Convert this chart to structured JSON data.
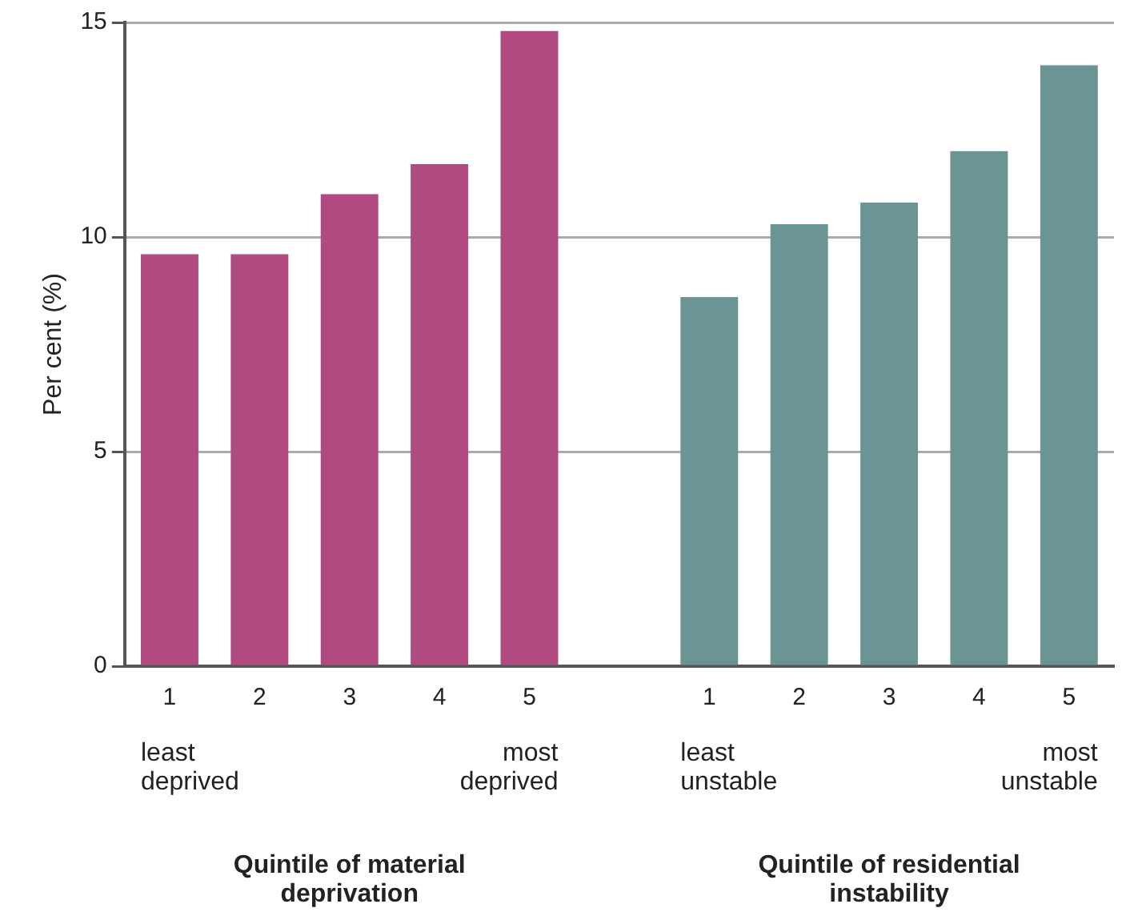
{
  "chart_data": {
    "type": "bar",
    "ylabel": "Per cent (%)",
    "categories": [
      "1",
      "2",
      "3",
      "4",
      "5",
      null,
      "1",
      "2",
      "3",
      "4",
      "5"
    ],
    "series": [
      {
        "color": "#b14a80",
        "values": [
          9.6,
          9.6,
          11.0,
          11.7,
          14.8,
          null,
          null,
          null,
          null,
          null,
          null
        ]
      },
      {
        "color": "#6b9495",
        "values": [
          null,
          null,
          null,
          null,
          null,
          null,
          8.6,
          10.3,
          10.8,
          12.0,
          14.0
        ]
      }
    ],
    "ylim": [
      0,
      15
    ],
    "yticks": [
      0,
      5,
      10,
      15
    ],
    "grid": "y",
    "annotations": [
      "least deprived",
      "most deprived",
      "least unstable",
      "most unstable",
      "Quintile of material deprivation",
      "Quintile of residential instability"
    ]
  }
}
